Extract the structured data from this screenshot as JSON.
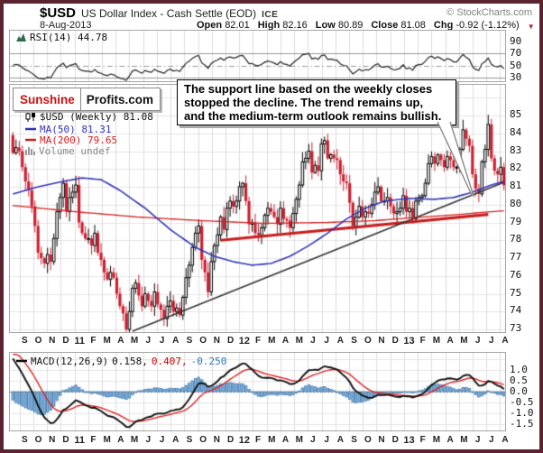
{
  "header": {
    "symbol": "$USD",
    "title": "US Dollar Index - Cash Settle (EOD)",
    "exchange": "ICE",
    "copyright": "© StockCharts.com",
    "date": "8-Aug-2013",
    "quote": {
      "open_label": "Open",
      "open": "82.01",
      "high_label": "High",
      "high": "82.16",
      "low_label": "Low",
      "low": "80.89",
      "close_label": "Close",
      "close": "81.08",
      "chg_label": "Chg",
      "chg": "-0.92 (-1.12%)"
    }
  },
  "logo": {
    "part1": "Sunshine",
    "part2": "Profits.com"
  },
  "annotation": {
    "lines": [
      "The support line based on the weekly closes",
      "stopped the decline. The trend remains up,",
      "and the medium-term outlook remains bullish."
    ]
  },
  "rsi_panel": {
    "label": "RSI(14) 44.78",
    "axis": [
      "90",
      "70",
      "50",
      "30"
    ]
  },
  "price_panel": {
    "legend_symbol": "$USD (Weekly) 81.08",
    "legend_ma50": "MA(50) 81.31",
    "legend_ma200": "MA(200) 79.65",
    "legend_volume": "Volume undef",
    "axis": [
      "85",
      "84",
      "83",
      "82",
      "81",
      "80",
      "79",
      "78",
      "77",
      "76",
      "75",
      "74",
      "73"
    ]
  },
  "macd_panel": {
    "legend_name": "MACD(12,26,9)",
    "value_macd": "0.158,",
    "value_signal": "0.407,",
    "value_hist": "-0.250",
    "axis": [
      "1.0",
      "0.5",
      "0.0",
      "-0.5",
      "-1.0",
      "-1.5"
    ]
  },
  "colors": {
    "frame": "#5B2230",
    "grid": "#DDDDDD",
    "grid_light": "#E4E4E4",
    "panel_border": "#A6A6A6",
    "candle_up_fill": "#FFFFFF",
    "candle_up_stroke": "#000000",
    "candle_down": "#CC2030",
    "ma50": "#3333B8",
    "ma200": "#D42020",
    "support_line": "#333333",
    "medium_line": "#C81E1E",
    "rsi_line": "#222222",
    "rsi_levels": "#999999",
    "macd_line": "#111111",
    "macd_signal": "#E02020",
    "hist_fill": "#7EB1D8",
    "hist_stroke": "#4A7FB5",
    "zero_line": "#667788",
    "value_signal_color": "#CC0000",
    "value_hist_color": "#2E7AB8",
    "legend_volume_color": "#888888",
    "chg_triangle": "#A8202C"
  },
  "chart_data": {
    "type": "candlestick",
    "symbol": "$USD",
    "timeframe": "weekly",
    "x_range": [
      "Aug 2010",
      "Aug 2013"
    ],
    "price_axis_range": [
      73,
      85
    ],
    "weekly_closes": [
      82.9,
      83.2,
      83.0,
      82.1,
      81.3,
      80.8,
      79.9,
      78.8,
      77.3,
      77.0,
      76.7,
      77.2,
      76.8,
      78.1,
      79.6,
      80.4,
      81.2,
      79.6,
      80.4,
      80.7,
      81.1,
      79.0,
      78.4,
      78.1,
      78.1,
      77.7,
      78.4,
      77.3,
      76.9,
      76.2,
      75.8,
      76.2,
      75.9,
      75.0,
      74.3,
      73.9,
      73.0,
      74.0,
      75.3,
      75.6,
      74.9,
      74.3,
      75.0,
      74.6,
      74.3,
      75.1,
      74.4,
      74.1,
      73.6,
      74.3,
      74.6,
      74.0,
      74.2,
      73.8,
      74.8,
      75.9,
      76.6,
      77.6,
      78.4,
      78.8,
      76.9,
      76.2,
      75.1,
      76.8,
      77.7,
      78.3,
      79.3,
      78.6,
      79.8,
      80.2,
      79.9,
      80.2,
      81.0,
      81.2,
      80.2,
      78.9,
      79.0,
      78.4,
      78.3,
      78.7,
      79.4,
      79.8,
      79.6,
      79.3,
      78.9,
      79.8,
      79.2,
      79.1,
      78.7,
      79.5,
      80.3,
      81.1,
      82.4,
      82.6,
      83.0,
      81.8,
      82.2,
      81.9,
      83.4,
      83.6,
      82.6,
      82.8,
      82.6,
      82.5,
      81.7,
      81.3,
      81.2,
      80.1,
      78.8,
      79.3,
      79.9,
      79.3,
      79.6,
      79.5,
      80.0,
      80.7,
      81.0,
      80.2,
      80.2,
      80.4,
      79.9,
      79.5,
      79.6,
      79.8,
      80.5,
      79.6,
      79.8,
      79.2,
      80.2,
      80.4,
      80.5,
      81.2,
      82.3,
      82.7,
      82.3,
      82.8,
      82.5,
      82.1,
      82.7,
      82.5,
      82.1,
      82.1,
      83.1,
      84.2,
      83.7,
      83.3,
      81.7,
      80.9,
      80.6,
      82.4,
      83.1,
      84.5,
      82.6,
      81.9,
      81.7,
      82.1,
      81.08
    ],
    "pre_series_for_indicator_warmup": [
      77.0,
      76.5,
      76.2,
      76.8,
      77.4,
      78.0,
      78.6,
      79.2,
      79.9,
      80.3,
      80.1,
      80.7,
      81.2,
      80.8,
      81.4,
      82.1,
      81.7,
      82.4,
      83.3,
      84.4,
      85.4,
      84.7,
      85.9,
      86.5,
      87.7,
      88.4,
      87.3,
      85.9,
      85.1,
      83.9
    ],
    "ma50_waypoints": [
      [
        0,
        80.6
      ],
      [
        8,
        81.0
      ],
      [
        16,
        81.3
      ],
      [
        22,
        81.5
      ],
      [
        28,
        81.4
      ],
      [
        34,
        80.8
      ],
      [
        42,
        79.8
      ],
      [
        50,
        78.6
      ],
      [
        58,
        77.6
      ],
      [
        64,
        77.1
      ],
      [
        70,
        76.8
      ],
      [
        76,
        76.6
      ],
      [
        82,
        76.7
      ],
      [
        88,
        77.1
      ],
      [
        94,
        77.7
      ],
      [
        100,
        78.4
      ],
      [
        106,
        79.2
      ],
      [
        112,
        79.8
      ],
      [
        118,
        80.2
      ],
      [
        126,
        80.35
      ],
      [
        134,
        80.3
      ],
      [
        140,
        80.4
      ],
      [
        146,
        80.7
      ],
      [
        152,
        81.1
      ],
      [
        156,
        81.31
      ]
    ],
    "ma200_waypoints": [
      [
        0,
        79.95
      ],
      [
        20,
        79.6
      ],
      [
        40,
        79.3
      ],
      [
        60,
        79.1
      ],
      [
        80,
        78.95
      ],
      [
        100,
        79.0
      ],
      [
        115,
        79.1
      ],
      [
        130,
        79.3
      ],
      [
        142,
        79.45
      ],
      [
        150,
        79.58
      ],
      [
        156,
        79.65
      ]
    ],
    "support_line": {
      "from": [
        38,
        72.9
      ],
      "to": [
        156,
        81.25
      ]
    },
    "medium_term_line": {
      "from": [
        66,
        78.0
      ],
      "to": [
        151,
        79.45
      ]
    },
    "rsi": {
      "period": 14,
      "last": 44.78,
      "levels": [
        70,
        50,
        30
      ]
    },
    "macd": {
      "params": "12,26,9",
      "last": [
        0.158,
        0.407,
        -0.25
      ]
    },
    "months": [
      "S",
      "O",
      "N",
      "D",
      "11",
      "F",
      "M",
      "A",
      "M",
      "J",
      "J",
      "A",
      "S",
      "O",
      "N",
      "D",
      "12",
      "F",
      "M",
      "A",
      "M",
      "J",
      "J",
      "A",
      "S",
      "O",
      "N",
      "D",
      "13",
      "F",
      "M",
      "A",
      "M",
      "J",
      "J",
      "A"
    ],
    "year_label_indices": [
      4,
      16,
      28
    ]
  }
}
